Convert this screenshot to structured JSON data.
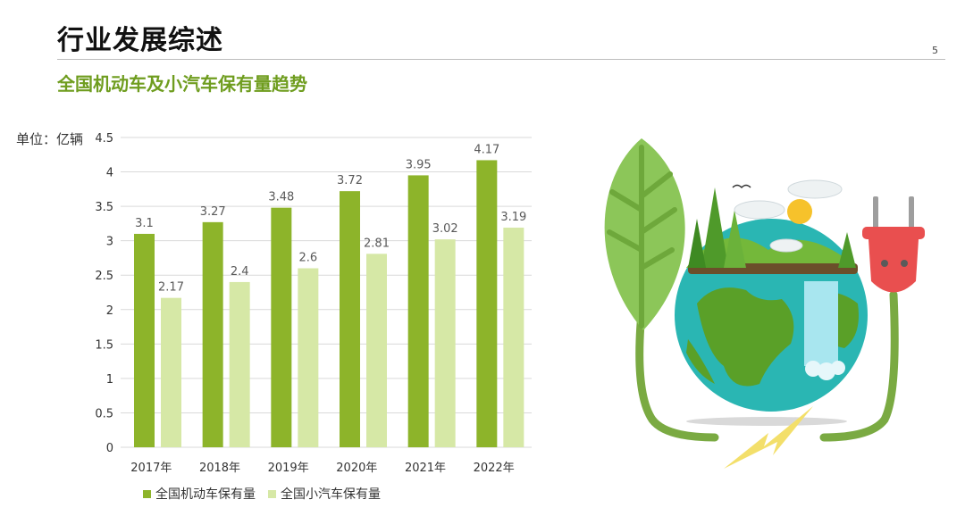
{
  "header": {
    "title": "行业发展综述",
    "page_number": "5",
    "subtitle": "全国机动车及小汽车保有量趋势"
  },
  "chart_data": {
    "type": "bar",
    "unit_label": "单位：亿辆",
    "categories": [
      "2017年",
      "2018年",
      "2019年",
      "2020年",
      "2021年",
      "2022年"
    ],
    "series": [
      {
        "name": "全国机动车保有量",
        "values": [
          3.1,
          3.27,
          3.48,
          3.72,
          3.95,
          4.17
        ],
        "color": "#8db42a"
      },
      {
        "name": "全国小汽车保有量",
        "values": [
          2.17,
          2.4,
          2.6,
          2.81,
          3.02,
          3.19
        ],
        "color": "#d6e8a6"
      }
    ],
    "ylim": [
      0,
      4.5
    ],
    "yticks": [
      "0",
      "0.5",
      "1",
      "1.5",
      "2",
      "2.5",
      "3",
      "3.5",
      "4",
      "4.5"
    ],
    "grid": true,
    "legend_position": "bottom"
  },
  "colors": {
    "title": "#111111",
    "subtitle": "#6f9d1f",
    "grid": "#d9d9d9",
    "label": "#595959"
  }
}
